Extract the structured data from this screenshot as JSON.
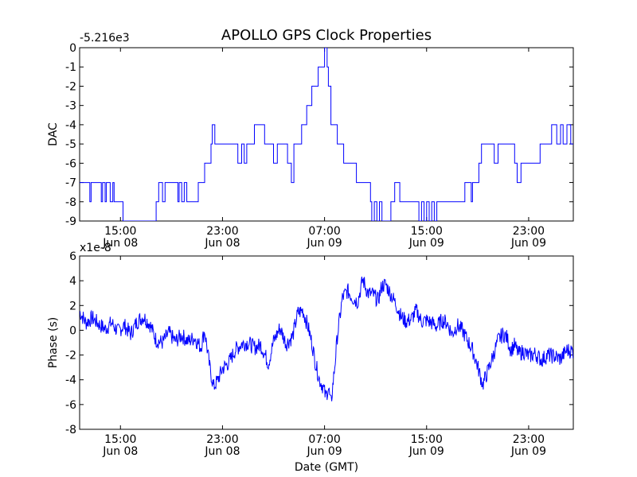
{
  "figure": {
    "title": "APOLLO GPS Clock Properties",
    "line_color": "#0000ff"
  },
  "chart_data": [
    {
      "type": "line",
      "ylabel": "DAC",
      "xlabel": "",
      "y_offset_label": "-5.216e3",
      "ylim": [
        -9,
        0
      ],
      "yticks": [
        "0",
        "-1",
        "-2",
        "-3",
        "-4",
        "-5",
        "-6",
        "-7",
        "-8",
        "-9"
      ],
      "xlim": [
        "Jun 08 11:48",
        "Jun 10 00:30"
      ],
      "xticks": [
        {
          "time": "15:00",
          "date": "Jun 08"
        },
        {
          "time": "23:00",
          "date": "Jun 08"
        },
        {
          "time": "07:00",
          "date": "Jun 09"
        },
        {
          "time": "15:00",
          "date": "Jun 09"
        },
        {
          "time": "23:00",
          "date": "Jun 09"
        }
      ],
      "series": [
        {
          "x_hours": [
            11.8,
            12.6,
            12.7,
            13.5,
            13.6,
            13.8,
            13.9,
            14.2,
            14.4,
            14.5,
            14.6,
            15.2,
            17.8,
            18.0,
            18.3,
            18.5,
            19.5,
            19.6,
            19.8,
            20.0,
            20.2,
            20.5,
            21.0,
            21.1,
            21.5,
            21.6,
            22.1,
            22.2,
            22.4,
            22.6,
            23.0,
            24.2,
            24.5,
            24.7,
            24.9,
            25.1,
            25.3,
            25.5,
            25.8,
            26.3,
            26.6,
            27.0,
            27.3,
            27.5,
            28.1,
            28.4,
            28.6,
            28.9,
            29.2,
            29.6,
            30.0,
            30.5,
            30.8,
            31.0,
            31.2,
            31.3,
            31.5,
            32.0,
            32.5,
            33.0,
            33.5,
            34.0,
            34.3,
            34.6,
            34.7,
            34.9,
            35.1,
            35.3,
            35.5,
            36.2,
            36.5,
            36.9,
            37.3,
            37.5,
            37.8,
            38.0,
            38.4,
            38.6,
            38.8,
            39.0,
            39.2,
            39.4,
            39.6,
            39.8,
            40.0,
            40.5,
            41.0,
            41.0,
            41.3,
            41.7,
            42.0,
            42.5,
            42.6,
            43.1,
            43.3,
            43.6,
            44.0,
            44.3,
            44.6,
            45.2,
            45.5,
            45.9,
            46.1,
            46.4,
            46.6,
            47.2,
            47.9,
            48.1,
            48.3,
            48.6,
            48.8,
            49.2,
            49.5,
            49.7,
            50.0,
            50.3,
            50.5
          ],
          "y": [
            -7,
            -8,
            -7,
            -8,
            -7,
            -8,
            -7,
            -8,
            -7,
            -8,
            -8,
            -9,
            -8,
            -7,
            -8,
            -7,
            -8,
            -7,
            -8,
            -7,
            -8,
            -8,
            -8,
            -7,
            -7,
            -6,
            -5,
            -4,
            -5,
            -5,
            -5,
            -6,
            -5,
            -6,
            -5,
            -5,
            -5,
            -4,
            -4,
            -5,
            -5,
            -6,
            -5,
            -5,
            -6,
            -7,
            -5,
            -5,
            -4,
            -3,
            -2,
            -1,
            -1,
            0,
            -1,
            -2,
            -4,
            -5,
            -6,
            -6,
            -7,
            -7,
            -7,
            -8,
            -9,
            -8,
            -9,
            -8,
            -9,
            -8,
            -7,
            -8,
            -8,
            -8,
            -8,
            -8,
            -9,
            -8,
            -9,
            -8,
            -9,
            -8,
            -9,
            -8,
            -8,
            -8,
            -8,
            -8,
            -8,
            -8,
            -7,
            -8,
            -7,
            -6,
            -5,
            -5,
            -5,
            -6,
            -5,
            -5,
            -5,
            -6,
            -7,
            -6,
            -6,
            -6,
            -5,
            -5,
            -5,
            -5,
            -4,
            -5,
            -4,
            -5,
            -4,
            -5,
            -5
          ]
        }
      ]
    },
    {
      "type": "line",
      "ylabel": "Phase (s)",
      "xlabel": "Date (GMT)",
      "y_offset_label": "x1e-8",
      "ylim": [
        -8,
        6
      ],
      "yticks": [
        "6",
        "4",
        "2",
        "0",
        "-2",
        "-4",
        "-6",
        "-8"
      ],
      "xlim": [
        "Jun 08 11:48",
        "Jun 10 00:30"
      ],
      "xticks": [
        {
          "time": "15:00",
          "date": "Jun 08"
        },
        {
          "time": "23:00",
          "date": "Jun 08"
        },
        {
          "time": "07:00",
          "date": "Jun 09"
        },
        {
          "time": "15:00",
          "date": "Jun 09"
        },
        {
          "time": "23:00",
          "date": "Jun 09"
        }
      ],
      "series": [
        {
          "x_hours": [
            11.8,
            12.3,
            12.8,
            13.3,
            13.8,
            14.3,
            14.8,
            15.3,
            15.8,
            16.3,
            16.8,
            17.3,
            17.8,
            18.3,
            18.8,
            19.3,
            19.8,
            20.3,
            20.8,
            21.3,
            21.6,
            22.0,
            22.3,
            22.6,
            23.0,
            23.5,
            24.0,
            24.5,
            25.0,
            25.5,
            26.0,
            26.3,
            26.6,
            27.0,
            27.5,
            28.0,
            28.5,
            28.9,
            29.3,
            29.7,
            30.0,
            30.3,
            30.6,
            30.9,
            31.1,
            31.3,
            31.5,
            31.8,
            32.0,
            32.4,
            32.8,
            33.2,
            33.6,
            34.0,
            34.4,
            34.8,
            35.2,
            35.5,
            35.8,
            36.2,
            36.6,
            37.0,
            37.4,
            37.8,
            38.2,
            38.6,
            39.0,
            39.4,
            39.8,
            40.2,
            40.6,
            41.0,
            41.4,
            41.8,
            42.2,
            42.6,
            43.0,
            43.4,
            43.8,
            44.2,
            44.6,
            45.0,
            45.3,
            45.6,
            45.9,
            46.2,
            46.6,
            47.0,
            47.5,
            48.0,
            48.5,
            49.0,
            49.5,
            50.0,
            50.5
          ],
          "y": [
            1.5,
            0.6,
            1.0,
            0.5,
            0.1,
            0.6,
            -0.1,
            0.4,
            -0.3,
            0.7,
            1.1,
            0.5,
            -0.8,
            -1.0,
            -0.2,
            -0.9,
            -0.4,
            -0.9,
            -0.6,
            -1.4,
            0.0,
            -3.0,
            -4.6,
            -4.1,
            -3.1,
            -2.6,
            -1.6,
            -1.1,
            -1.0,
            -1.4,
            -1.2,
            -1.9,
            -2.7,
            -0.9,
            0.2,
            -1.1,
            -0.5,
            1.4,
            1.6,
            0.3,
            -1.0,
            -2.7,
            -4.0,
            -4.6,
            -5.4,
            -4.6,
            -6.0,
            -2.9,
            -0.5,
            2.6,
            3.2,
            2.6,
            2.3,
            4.1,
            3.0,
            2.9,
            2.4,
            3.6,
            3.7,
            2.9,
            2.1,
            1.1,
            0.7,
            0.9,
            1.6,
            0.7,
            0.8,
            0.6,
            0.3,
            0.8,
            0.6,
            -0.3,
            0.4,
            0.0,
            -0.8,
            -1.6,
            -2.9,
            -4.4,
            -3.3,
            -2.1,
            -0.8,
            -0.3,
            -0.6,
            -1.6,
            -1.2,
            -1.9,
            -1.7,
            -2.1,
            -1.9,
            -2.4,
            -2.0,
            -2.1,
            -2.3,
            -1.6,
            -1.7
          ]
        }
      ]
    }
  ]
}
